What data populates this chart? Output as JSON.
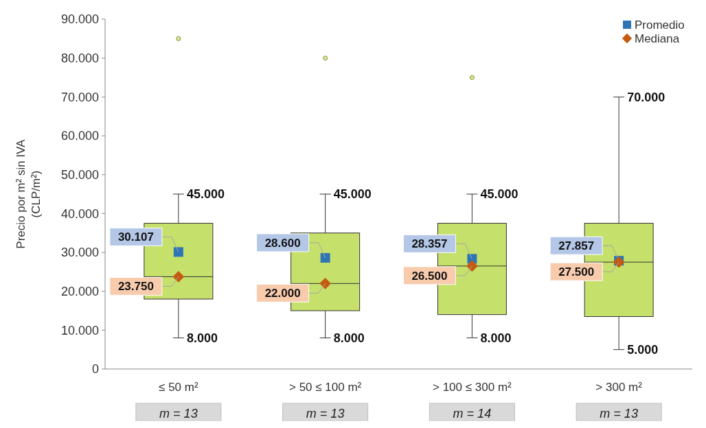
{
  "chart_data": {
    "type": "box",
    "ylabel": "Precio por m² sin IVA\n(CLP/m²)",
    "categories": [
      "≤ 50 m²",
      "> 50 ≤ 100 m²",
      "> 100 ≤ 300 m²",
      "> 300 m²"
    ],
    "ylim": [
      0,
      90000
    ],
    "yticks": [
      {
        "value": 0,
        "label": "0"
      },
      {
        "value": 10000,
        "label": "10.000"
      },
      {
        "value": 20000,
        "label": "20.000"
      },
      {
        "value": 30000,
        "label": "30.000"
      },
      {
        "value": 40000,
        "label": "40.000"
      },
      {
        "value": 50000,
        "label": "50.000"
      },
      {
        "value": 60000,
        "label": "60.000"
      },
      {
        "value": 70000,
        "label": "70.000"
      },
      {
        "value": 80000,
        "label": "80.000"
      },
      {
        "value": 90000,
        "label": "90.000"
      }
    ],
    "grid": false,
    "legend": "top right",
    "series": [
      {
        "color": "#c5e06b",
        "boxes": [
          {
            "low": 8000,
            "q1": 18000,
            "median": 23750,
            "q3": 37500,
            "high": 45000,
            "outliers": [
              85000
            ]
          },
          {
            "low": 8000,
            "q1": 15000,
            "median": 22000,
            "q3": 35000,
            "high": 45000,
            "outliers": [
              80000
            ]
          },
          {
            "low": 8000,
            "q1": 14000,
            "median": 26500,
            "q3": 37500,
            "high": 45000,
            "outliers": [
              75000
            ]
          },
          {
            "low": 5000,
            "q1": 13500,
            "median": 27500,
            "q3": 37500,
            "high": 70000
          }
        ]
      },
      {
        "type": "scatter",
        "name": "Promedio",
        "color": "#2e75b6",
        "marker": "square",
        "x": [
          "≤ 50 m²",
          "> 50 ≤ 100 m²",
          "> 100 ≤ 300 m²",
          "> 300 m²"
        ],
        "values": [
          30107,
          28600,
          28357,
          27857
        ],
        "value_labels": [
          "30.107",
          "28.600",
          "28.357",
          "27.857"
        ]
      },
      {
        "type": "scatter",
        "name": "Mediana",
        "color": "#c55a11",
        "marker": "diamond",
        "x": [
          "≤ 50 m²",
          "> 50 ≤ 100 m²",
          "> 100 ≤ 300 m²",
          "> 300 m²"
        ],
        "values": [
          23750,
          22000,
          26500,
          27500
        ],
        "value_labels": [
          "23.750",
          "22.000",
          "26.500",
          "27.500"
        ]
      }
    ],
    "annotations": [
      {
        "text": "45.000",
        "x": "≤ 50 m²",
        "y": 45000
      },
      {
        "text": "8.000",
        "x": "≤ 50 m²",
        "y": 8000
      },
      {
        "text": "45.000",
        "x": "> 50 ≤ 100 m²",
        "y": 45000
      },
      {
        "text": "8.000",
        "x": "> 50 ≤ 100 m²",
        "y": 8000
      },
      {
        "text": "45.000",
        "x": "> 100 ≤ 300 m²",
        "y": 45000
      },
      {
        "text": "8.000",
        "x": "> 100 ≤ 300 m²",
        "y": 8000
      },
      {
        "text": "70.000",
        "x": "> 300 m²",
        "y": 70000
      },
      {
        "text": "5.000",
        "x": "> 300 m²",
        "y": 5000
      },
      "m = 13",
      "m = 13",
      "m = 14",
      "m = 13"
    ]
  }
}
